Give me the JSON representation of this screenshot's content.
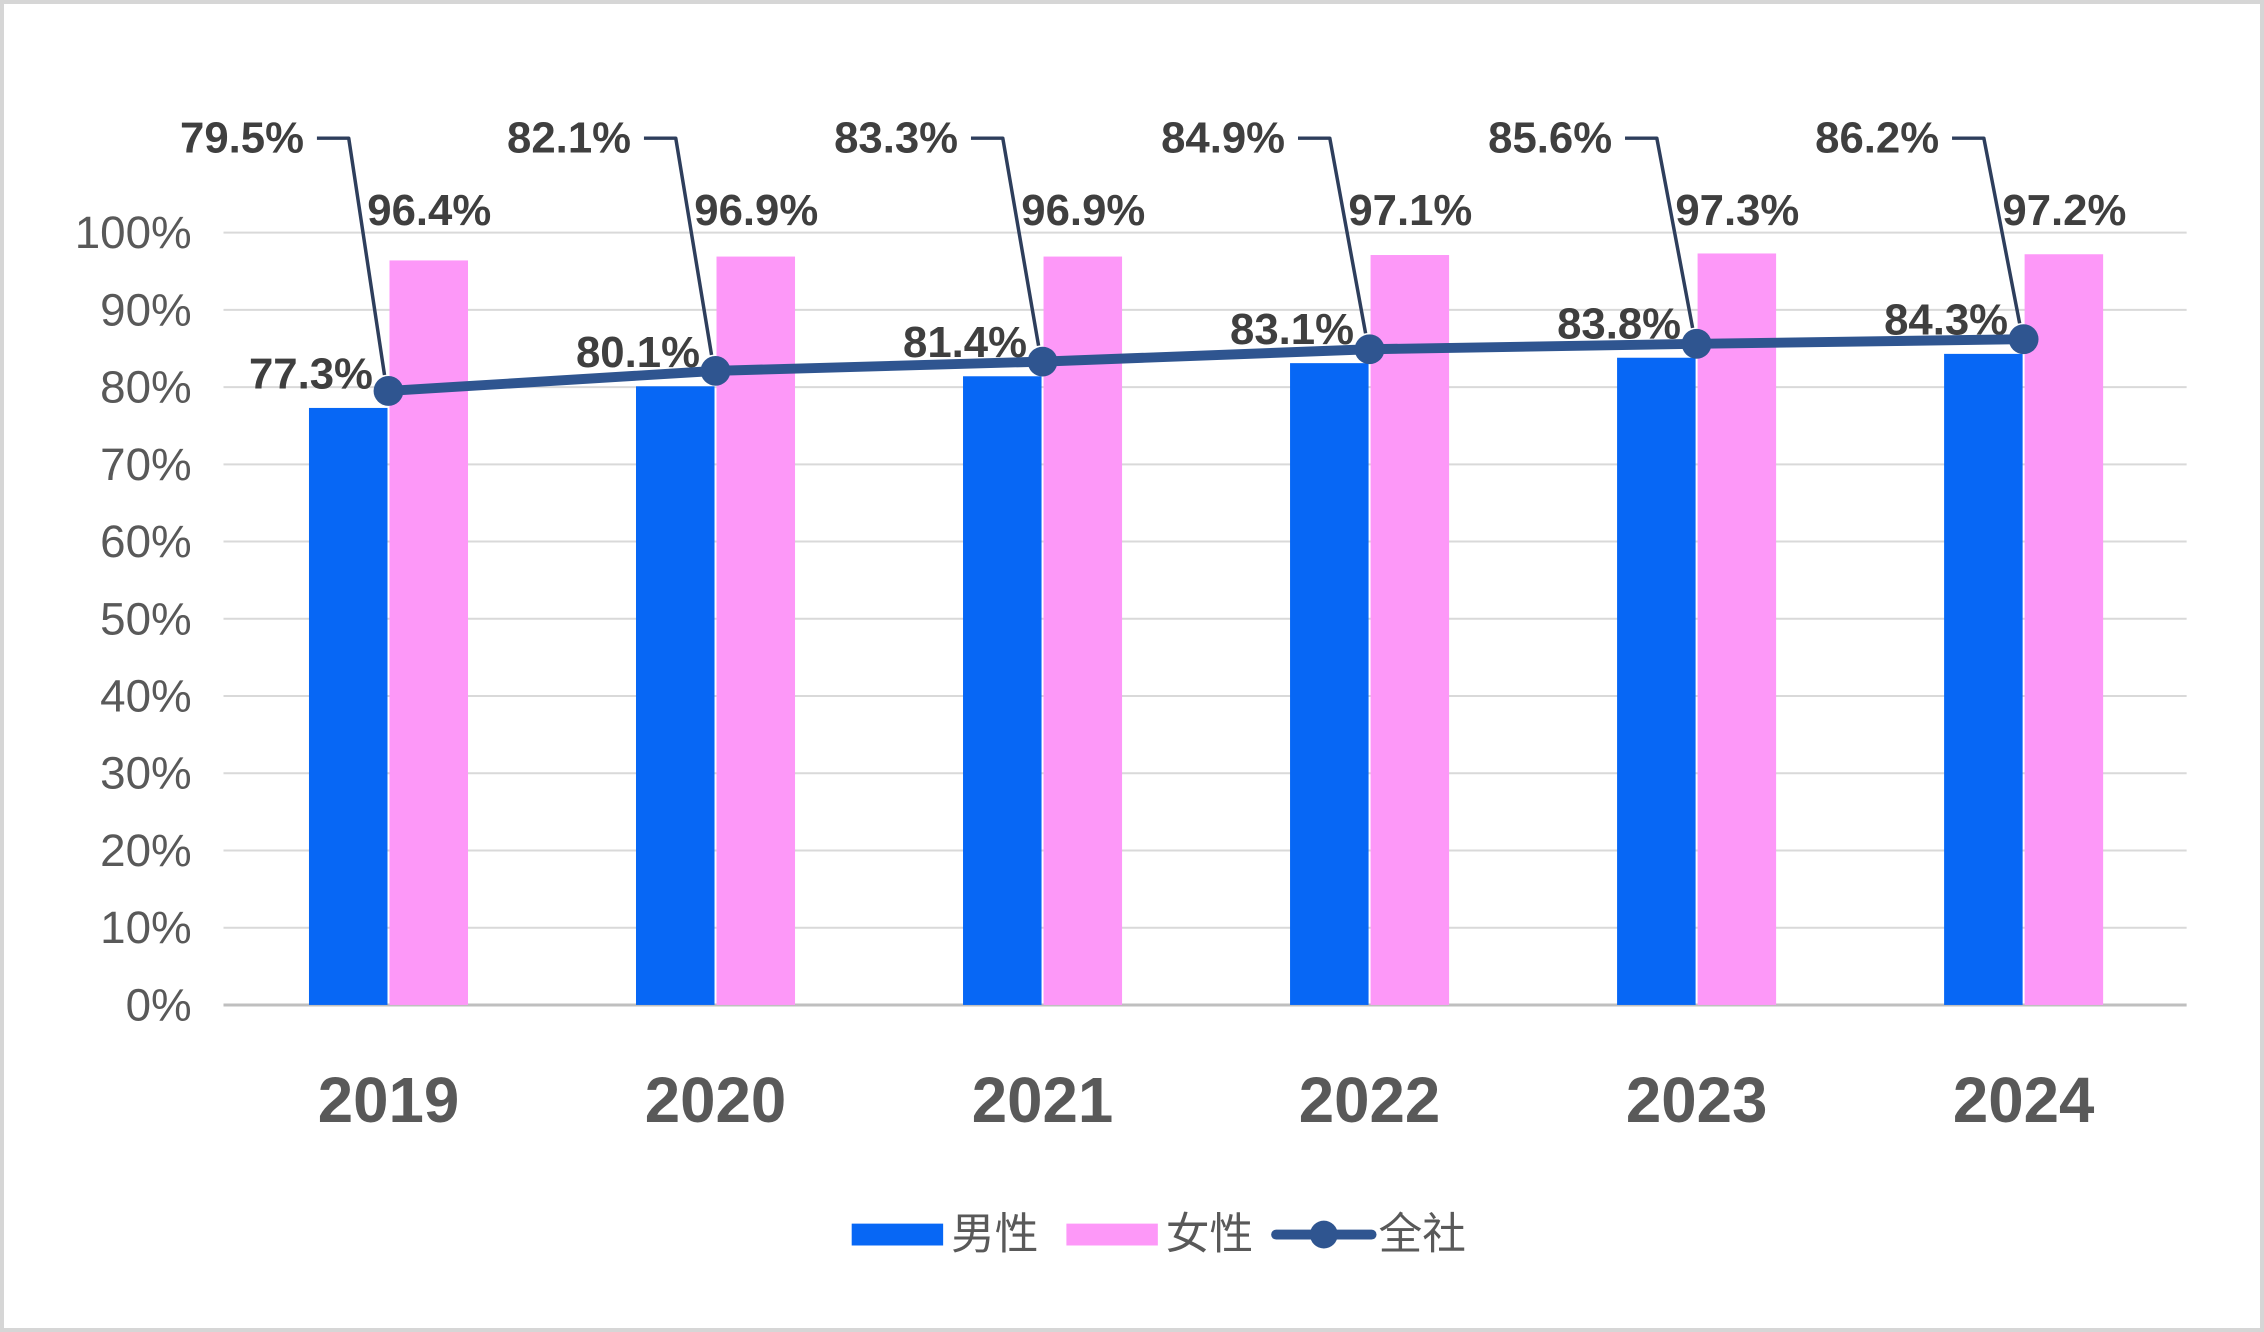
{
  "chart_data": {
    "type": "bar",
    "subtype": "grouped-bar-with-line-overlay",
    "categories": [
      "2019",
      "2020",
      "2021",
      "2022",
      "2023",
      "2024"
    ],
    "series": [
      {
        "name": "男性",
        "render": "bar",
        "color": "#0767F5",
        "values": [
          77.3,
          80.1,
          81.4,
          83.1,
          83.8,
          84.3
        ],
        "data_labels": [
          "77.3%",
          "80.1%",
          "81.4%",
          "83.1%",
          "83.8%",
          "84.3%"
        ]
      },
      {
        "name": "女性",
        "render": "bar",
        "color": "#FD98F8",
        "values": [
          96.4,
          96.9,
          96.9,
          97.1,
          97.3,
          97.2
        ],
        "data_labels": [
          "96.4%",
          "96.9%",
          "96.9%",
          "97.1%",
          "97.3%",
          "97.2%"
        ]
      },
      {
        "name": "全社",
        "render": "line",
        "color": "#2F5590",
        "marker": "circle",
        "values": [
          79.5,
          82.1,
          83.3,
          84.9,
          85.6,
          86.2
        ],
        "data_labels": [
          "79.5%",
          "82.1%",
          "83.3%",
          "84.9%",
          "85.6%",
          "86.2%"
        ],
        "leader_lines": true
      }
    ],
    "title": "",
    "xlabel": "",
    "ylabel": "",
    "ylim": [
      0,
      100
    ],
    "ytick_step": 10,
    "yticks": [
      "0%",
      "10%",
      "20%",
      "30%",
      "40%",
      "50%",
      "60%",
      "70%",
      "80%",
      "90%",
      "100%"
    ],
    "grid": "horizontal",
    "legend_position": "bottom"
  },
  "legend": {
    "items": [
      {
        "label": "男性",
        "swatch": "bar",
        "color": "#0767F5"
      },
      {
        "label": "女性",
        "swatch": "bar",
        "color": "#FD98F8"
      },
      {
        "label": "全社",
        "swatch": "line-marker",
        "color": "#2F5590"
      }
    ]
  },
  "colors": {
    "male_bar": "#0767F5",
    "female_bar": "#FD98F8",
    "line": "#2F5590",
    "leader_line": "#2E3E5C",
    "gridline": "#D9D9D9",
    "axis_line": "#BFBFBF",
    "tick_text": "#595959",
    "category_text": "#595959",
    "data_label_text": "#3F3F3F",
    "legend_text": "#595959",
    "frame_border": "#D6D6D6",
    "background": "#FFFFFF"
  }
}
